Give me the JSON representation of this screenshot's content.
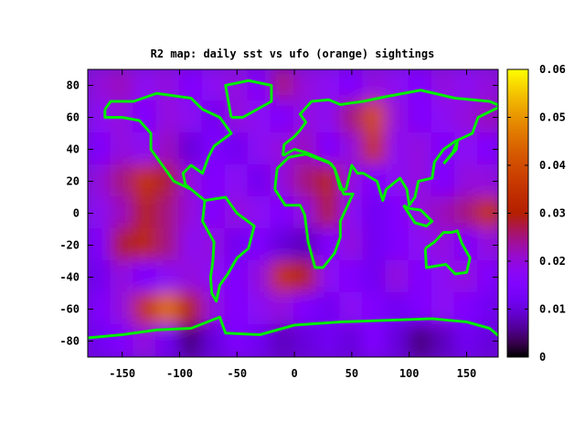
{
  "chart_data": {
    "type": "heatmap",
    "title": "R2 map: daily sst vs ufo (orange) sightings",
    "xlim": [
      -180,
      177.5
    ],
    "ylim": [
      -90,
      90
    ],
    "xticks": [
      -150,
      -100,
      -50,
      0,
      50,
      100,
      150
    ],
    "yticks": [
      -80,
      -60,
      -40,
      -20,
      0,
      20,
      40,
      60,
      80
    ],
    "colorbar": {
      "range": [
        0,
        0.06
      ],
      "ticks": [
        "0",
        "0.01",
        "0.02",
        "0.03",
        "0.04",
        "0.05",
        "0.06"
      ],
      "palette": "black-purple-red-orange-yellow"
    },
    "grid": false,
    "lon_centers": [
      -170,
      -150,
      -130,
      -110,
      -90,
      -70,
      -50,
      -30,
      -10,
      10,
      30,
      50,
      70,
      90,
      110,
      130,
      150,
      170
    ],
    "lat_centers": [
      80,
      60,
      40,
      20,
      0,
      -20,
      -40,
      -60,
      -80
    ],
    "values": [
      [
        0.02,
        0.022,
        0.018,
        0.02,
        0.015,
        0.018,
        0.02,
        0.015,
        0.025,
        0.02,
        0.018,
        0.015,
        0.02,
        0.018,
        0.015,
        0.02,
        0.018,
        0.02
      ],
      [
        0.018,
        0.02,
        0.015,
        0.02,
        0.018,
        0.012,
        0.02,
        0.018,
        0.015,
        0.02,
        0.018,
        0.025,
        0.04,
        0.02,
        0.015,
        0.018,
        0.02,
        0.022
      ],
      [
        0.015,
        0.02,
        0.018,
        0.022,
        0.01,
        0.015,
        0.012,
        0.018,
        0.02,
        0.022,
        0.015,
        0.02,
        0.035,
        0.018,
        0.02,
        0.015,
        0.018,
        0.015
      ],
      [
        0.02,
        0.025,
        0.035,
        0.028,
        0.02,
        0.015,
        0.018,
        0.012,
        0.02,
        0.025,
        0.03,
        0.02,
        0.015,
        0.018,
        0.02,
        0.015,
        0.02,
        0.02
      ],
      [
        0.018,
        0.022,
        0.03,
        0.025,
        0.02,
        0.015,
        0.02,
        0.018,
        0.015,
        0.02,
        0.028,
        0.018,
        0.012,
        0.015,
        0.02,
        0.022,
        0.025,
        0.035
      ],
      [
        0.015,
        0.028,
        0.032,
        0.025,
        0.018,
        0.02,
        0.012,
        0.015,
        0.01,
        0.008,
        0.015,
        0.02,
        0.012,
        0.015,
        0.018,
        0.02,
        0.015,
        0.02
      ],
      [
        0.012,
        0.02,
        0.015,
        0.018,
        0.02,
        0.018,
        0.015,
        0.02,
        0.035,
        0.03,
        0.018,
        0.015,
        0.012,
        0.02,
        0.015,
        0.018,
        0.02,
        0.015
      ],
      [
        0.015,
        0.02,
        0.035,
        0.045,
        0.03,
        0.02,
        0.015,
        0.018,
        0.02,
        0.015,
        0.012,
        0.018,
        0.015,
        0.012,
        0.015,
        0.018,
        0.015,
        0.012
      ],
      [
        0.012,
        0.015,
        0.02,
        0.012,
        0.005,
        0.01,
        0.015,
        0.012,
        0.008,
        0.01,
        0.012,
        0.01,
        0.015,
        0.01,
        0.005,
        0.008,
        0.012,
        0.01
      ]
    ],
    "coastline_color": "#00ee00",
    "coastlines": [
      [
        [
          -165,
          65
        ],
        [
          -160,
          70
        ],
        [
          -140,
          70
        ],
        [
          -120,
          75
        ],
        [
          -90,
          72
        ],
        [
          -80,
          65
        ],
        [
          -65,
          60
        ],
        [
          -55,
          50
        ],
        [
          -70,
          42
        ],
        [
          -75,
          35
        ],
        [
          -80,
          25
        ],
        [
          -90,
          30
        ],
        [
          -97,
          25
        ],
        [
          -95,
          18
        ],
        [
          -85,
          12
        ],
        [
          -78,
          8
        ],
        [
          -90,
          15
        ],
        [
          -105,
          20
        ],
        [
          -115,
          30
        ],
        [
          -125,
          40
        ],
        [
          -125,
          50
        ],
        [
          -135,
          58
        ],
        [
          -150,
          60
        ],
        [
          -165,
          60
        ],
        [
          -165,
          65
        ]
      ],
      [
        [
          -78,
          8
        ],
        [
          -60,
          10
        ],
        [
          -50,
          0
        ],
        [
          -35,
          -8
        ],
        [
          -40,
          -22
        ],
        [
          -50,
          -28
        ],
        [
          -58,
          -38
        ],
        [
          -65,
          -45
        ],
        [
          -68,
          -55
        ],
        [
          -72,
          -50
        ],
        [
          -73,
          -40
        ],
        [
          -71,
          -30
        ],
        [
          -70,
          -18
        ],
        [
          -80,
          -5
        ],
        [
          -78,
          8
        ]
      ],
      [
        [
          -10,
          36
        ],
        [
          -9,
          43
        ],
        [
          0,
          48
        ],
        [
          5,
          52
        ],
        [
          10,
          57
        ],
        [
          5,
          62
        ],
        [
          15,
          70
        ],
        [
          30,
          71
        ],
        [
          40,
          68
        ],
        [
          60,
          70
        ],
        [
          80,
          73
        ],
        [
          110,
          77
        ],
        [
          140,
          72
        ],
        [
          170,
          70
        ],
        [
          180,
          67
        ],
        [
          160,
          60
        ],
        [
          155,
          50
        ],
        [
          140,
          45
        ],
        [
          130,
          40
        ],
        [
          122,
          32
        ],
        [
          120,
          22
        ],
        [
          108,
          20
        ],
        [
          105,
          10
        ],
        [
          100,
          5
        ],
        [
          98,
          15
        ],
        [
          92,
          22
        ],
        [
          80,
          15
        ],
        [
          77,
          8
        ],
        [
          72,
          20
        ],
        [
          60,
          25
        ],
        [
          55,
          25
        ],
        [
          50,
          30
        ],
        [
          45,
          15
        ],
        [
          40,
          15
        ],
        [
          35,
          28
        ],
        [
          30,
          32
        ],
        [
          20,
          35
        ],
        [
          10,
          38
        ],
        [
          0,
          40
        ],
        [
          -10,
          36
        ]
      ],
      [
        [
          -17,
          15
        ],
        [
          -15,
          28
        ],
        [
          -5,
          35
        ],
        [
          10,
          37
        ],
        [
          32,
          31
        ],
        [
          35,
          28
        ],
        [
          43,
          12
        ],
        [
          51,
          12
        ],
        [
          40,
          -5
        ],
        [
          40,
          -15
        ],
        [
          35,
          -25
        ],
        [
          25,
          -34
        ],
        [
          18,
          -34
        ],
        [
          12,
          -18
        ],
        [
          9,
          -1
        ],
        [
          5,
          5
        ],
        [
          -8,
          5
        ],
        [
          -17,
          15
        ]
      ],
      [
        [
          114,
          -22
        ],
        [
          122,
          -18
        ],
        [
          130,
          -12
        ],
        [
          137,
          -12
        ],
        [
          142,
          -11
        ],
        [
          146,
          -19
        ],
        [
          153,
          -28
        ],
        [
          150,
          -37
        ],
        [
          140,
          -38
        ],
        [
          132,
          -32
        ],
        [
          115,
          -34
        ],
        [
          114,
          -22
        ]
      ],
      [
        [
          -180,
          -78
        ],
        [
          -150,
          -76
        ],
        [
          -120,
          -73
        ],
        [
          -90,
          -72
        ],
        [
          -65,
          -65
        ],
        [
          -60,
          -75
        ],
        [
          -30,
          -76
        ],
        [
          0,
          -70
        ],
        [
          40,
          -68
        ],
        [
          80,
          -67
        ],
        [
          120,
          -66
        ],
        [
          150,
          -68
        ],
        [
          170,
          -72
        ],
        [
          180,
          -78
        ]
      ],
      [
        [
          -55,
          60
        ],
        [
          -45,
          60
        ],
        [
          -20,
          70
        ],
        [
          -20,
          80
        ],
        [
          -40,
          83
        ],
        [
          -60,
          80
        ],
        [
          -55,
          60
        ]
      ],
      [
        [
          95,
          5
        ],
        [
          105,
          -6
        ],
        [
          115,
          -8
        ],
        [
          120,
          -5
        ],
        [
          110,
          2
        ],
        [
          100,
          3
        ],
        [
          95,
          5
        ]
      ],
      [
        [
          130,
          31
        ],
        [
          135,
          35
        ],
        [
          141,
          40
        ],
        [
          142,
          45
        ],
        [
          138,
          38
        ],
        [
          130,
          31
        ]
      ]
    ]
  }
}
